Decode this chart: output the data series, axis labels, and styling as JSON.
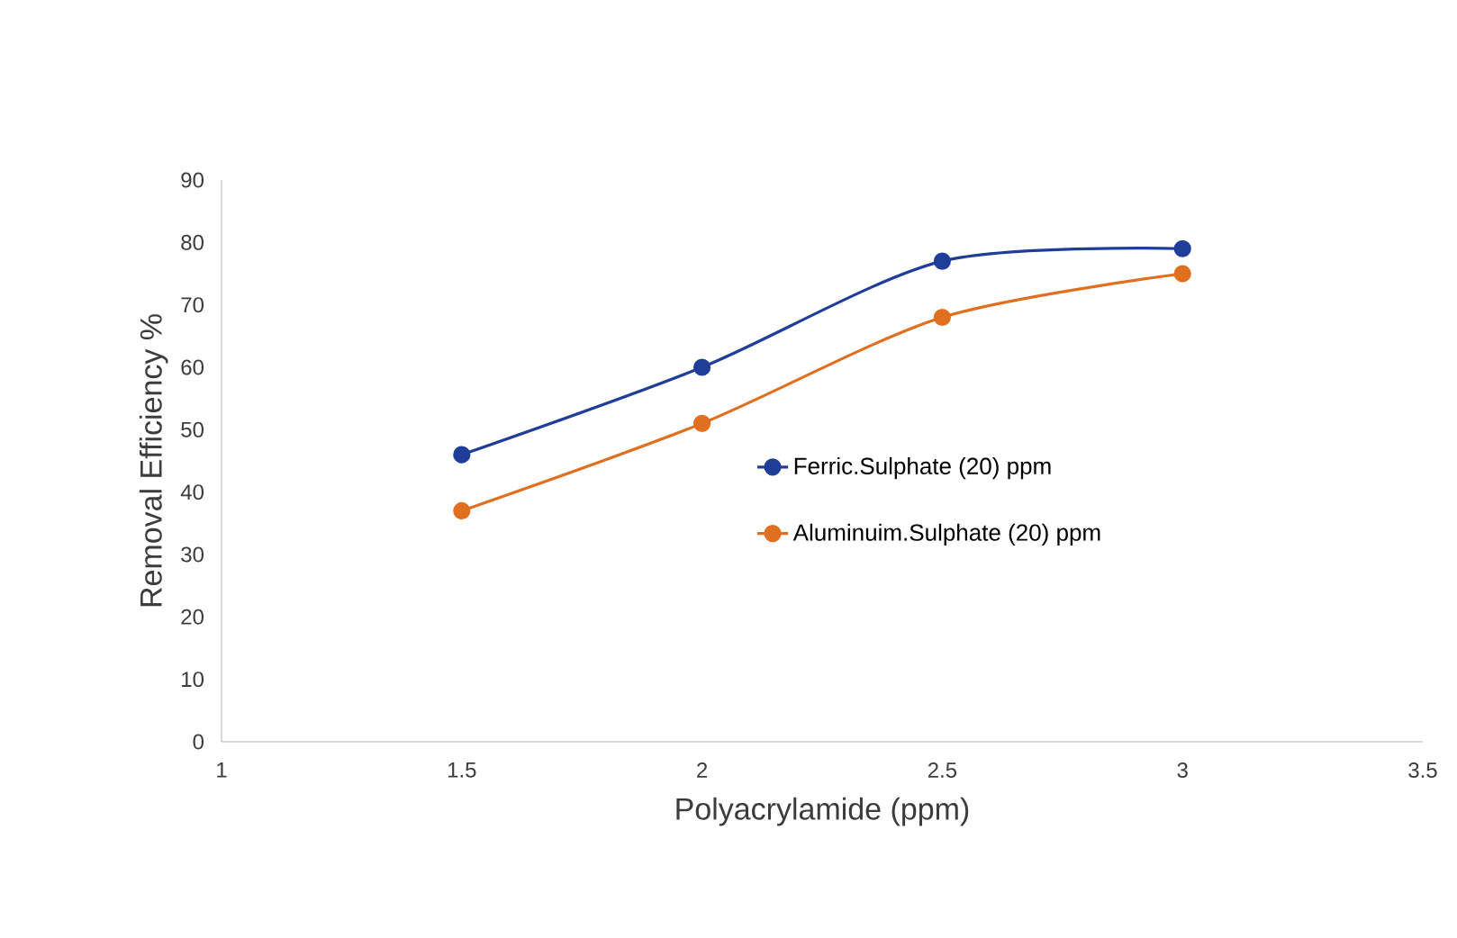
{
  "chart_data": {
    "type": "line",
    "xlabel": "Polyacrylamide (ppm)",
    "ylabel": "Removal Efficiency %",
    "x": [
      1.5,
      2,
      2.5,
      3
    ],
    "series": [
      {
        "name": "Ferric.Sulphate (20) ppm",
        "color": "#1f3d99",
        "values": [
          46,
          60,
          77,
          79
        ]
      },
      {
        "name": "Aluminuim.Sulphate (20) ppm",
        "color": "#e07020",
        "values": [
          37,
          51,
          68,
          75
        ]
      }
    ],
    "xlim": [
      1,
      3.5
    ],
    "xticks": [
      1,
      1.5,
      2,
      2.5,
      3,
      3.5
    ],
    "ylim": [
      0,
      90
    ],
    "yticks": [
      0,
      10,
      20,
      30,
      40,
      50,
      60,
      70,
      80,
      90
    ],
    "grid": false,
    "legend": "right",
    "marker": "circle",
    "line_style": "solid"
  }
}
